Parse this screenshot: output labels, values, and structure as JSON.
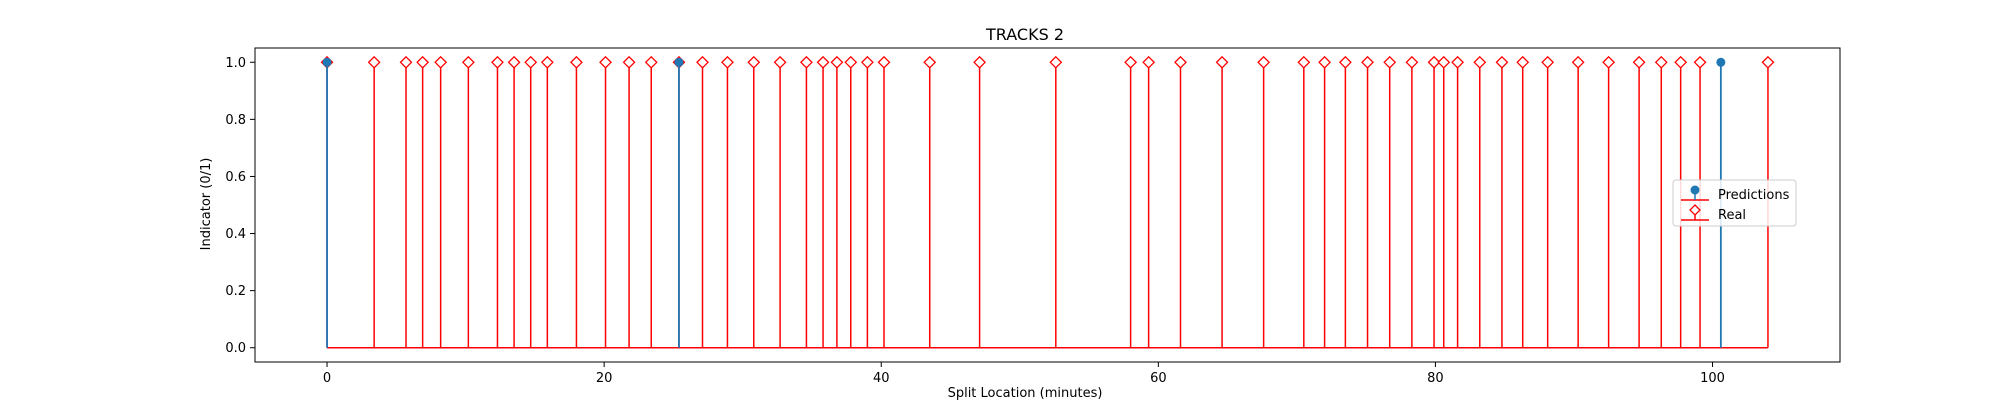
{
  "chart_data": {
    "type": "stem",
    "title": "TRACKS 2",
    "xlabel": "Split Location (minutes)",
    "ylabel": "Indicator (0/1)",
    "xlim": [
      -5.2,
      109.2
    ],
    "ylim": [
      -0.05,
      1.05
    ],
    "xticks": [
      0,
      20,
      40,
      60,
      80,
      100
    ],
    "xtick_labels": [
      "0",
      "20",
      "40",
      "60",
      "80",
      "100"
    ],
    "yticks": [
      0.0,
      0.2,
      0.4,
      0.6,
      0.8,
      1.0
    ],
    "ytick_labels": [
      "0.0",
      "0.2",
      "0.4",
      "0.6",
      "0.8",
      "1.0"
    ],
    "legend_position": "center-right",
    "series": [
      {
        "name": "Predictions",
        "color": "#1f77b4",
        "marker": "circle-filled",
        "x": [
          0,
          25.4,
          100.6
        ],
        "y": [
          1,
          1,
          1
        ]
      },
      {
        "name": "Real",
        "color": "#ff0000",
        "marker": "diamond-open",
        "x": [
          0,
          3.4,
          5.7,
          6.9,
          8.2,
          10.2,
          12.3,
          13.5,
          14.7,
          15.9,
          18.0,
          20.1,
          21.8,
          23.4,
          25.4,
          27.1,
          28.9,
          30.8,
          32.7,
          34.6,
          35.8,
          36.8,
          37.8,
          39.0,
          40.2,
          43.5,
          47.1,
          52.6,
          58.0,
          59.3,
          61.6,
          64.6,
          67.6,
          70.5,
          72.0,
          73.5,
          75.1,
          76.7,
          78.3,
          79.9,
          80.6,
          81.6,
          83.2,
          84.8,
          86.3,
          88.1,
          90.3,
          92.5,
          94.7,
          96.3,
          97.7,
          99.1,
          104.0
        ],
        "y": [
          1,
          1,
          1,
          1,
          1,
          1,
          1,
          1,
          1,
          1,
          1,
          1,
          1,
          1,
          1,
          1,
          1,
          1,
          1,
          1,
          1,
          1,
          1,
          1,
          1,
          1,
          1,
          1,
          1,
          1,
          1,
          1,
          1,
          1,
          1,
          1,
          1,
          1,
          1,
          1,
          1,
          1,
          1,
          1,
          1,
          1,
          1,
          1,
          1,
          1,
          1,
          1,
          1
        ]
      }
    ]
  }
}
